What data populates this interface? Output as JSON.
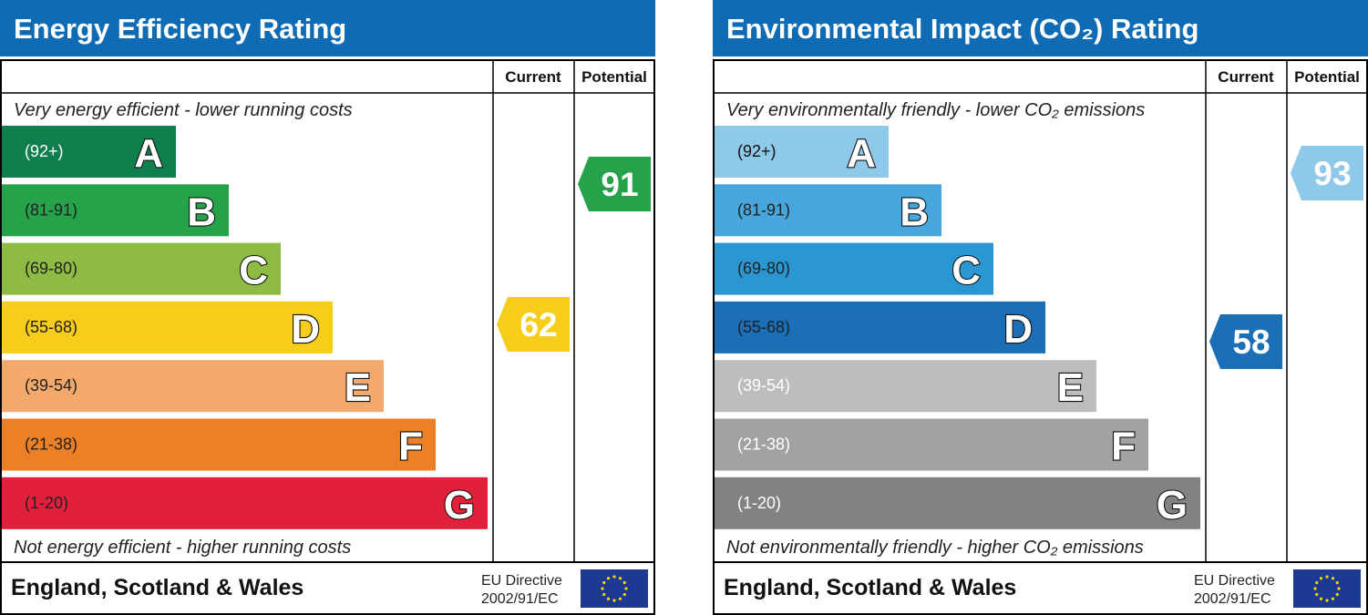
{
  "panels": [
    {
      "title": "Energy Efficiency Rating",
      "headers": [
        "Current",
        "Potential"
      ],
      "top_note": "Very energy efficient - lower running costs",
      "bands": [
        {
          "range": "(92+)",
          "letter": "A"
        },
        {
          "range": "(81-91)",
          "letter": "B"
        },
        {
          "range": "(69-80)",
          "letter": "C"
        },
        {
          "range": "(55-68)",
          "letter": "D"
        },
        {
          "range": "(39-54)",
          "letter": "E"
        },
        {
          "range": "(21-38)",
          "letter": "F"
        },
        {
          "range": "(1-20)",
          "letter": "G"
        }
      ],
      "current": 62,
      "potential": 91,
      "bottom_note": "Not energy efficient - higher running costs",
      "footer": {
        "region": "England, Scotland & Wales",
        "directive": "EU Directive",
        "code": "2002/91/EC"
      }
    },
    {
      "title": "Environmental Impact (CO₂) Rating",
      "headers": [
        "Current",
        "Potential"
      ],
      "top_note": "Very environmentally friendly - lower CO₂ emissions",
      "bands": [
        {
          "range": "(92+)",
          "letter": "A"
        },
        {
          "range": "(81-91)",
          "letter": "B"
        },
        {
          "range": "(69-80)",
          "letter": "C"
        },
        {
          "range": "(55-68)",
          "letter": "D"
        },
        {
          "range": "(39-54)",
          "letter": "E"
        },
        {
          "range": "(21-38)",
          "letter": "F"
        },
        {
          "range": "(1-20)",
          "letter": "G"
        }
      ],
      "current": 58,
      "potential": 93,
      "bottom_note": "Not environmentally friendly - higher CO₂ emissions",
      "footer": {
        "region": "England, Scotland & Wales",
        "directive": "EU Directive",
        "code": "2002/91/EC"
      }
    }
  ]
}
